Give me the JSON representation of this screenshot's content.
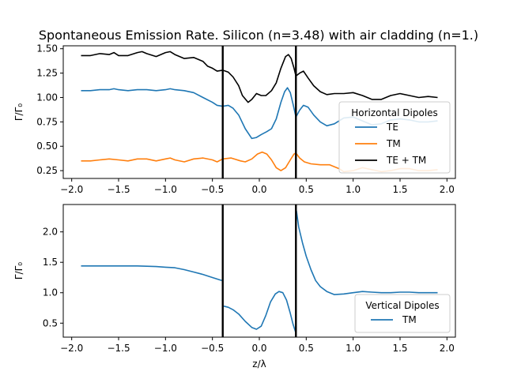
{
  "figure": {
    "title": "Spontaneous Emission Rate. Silicon (n=3.48) with air cladding (n=1.)"
  },
  "chart_data": [
    {
      "type": "line",
      "title": "Spontaneous Emission Rate. Silicon (n=3.48) with air cladding (n=1.)",
      "xlabel": "",
      "ylabel": "Γ/Γ₀",
      "xlim": [
        -2.09,
        2.09
      ],
      "ylim": [
        0.17,
        1.53
      ],
      "xticks": [
        -2.0,
        -1.5,
        -1.0,
        -0.5,
        0.0,
        0.5,
        1.0,
        1.5,
        2.0
      ],
      "xtick_labels": [
        "−2.0",
        "−1.5",
        "−1.0",
        "−0.5",
        "0.0",
        "0.5",
        "1.0",
        "1.5",
        "2.0"
      ],
      "yticks": [
        0.25,
        0.5,
        0.75,
        1.0,
        1.25,
        1.5
      ],
      "ytick_labels": [
        "0.25",
        "0.50",
        "0.75",
        "1.00",
        "1.25",
        "1.50"
      ],
      "vlines": [
        -0.39,
        0.39
      ],
      "grid": false,
      "legend": {
        "title": "Horizontal Dipoles",
        "position": "right"
      },
      "series": [
        {
          "name": "TE",
          "color": "#1f77b4",
          "points": [
            [
              -1.9,
              1.07
            ],
            [
              -1.8,
              1.07
            ],
            [
              -1.7,
              1.08
            ],
            [
              -1.6,
              1.08
            ],
            [
              -1.55,
              1.09
            ],
            [
              -1.5,
              1.08
            ],
            [
              -1.4,
              1.07
            ],
            [
              -1.3,
              1.08
            ],
            [
              -1.2,
              1.08
            ],
            [
              -1.1,
              1.07
            ],
            [
              -1.0,
              1.08
            ],
            [
              -0.95,
              1.09
            ],
            [
              -0.9,
              1.08
            ],
            [
              -0.8,
              1.07
            ],
            [
              -0.7,
              1.05
            ],
            [
              -0.6,
              1.0
            ],
            [
              -0.5,
              0.95
            ],
            [
              -0.45,
              0.92
            ],
            [
              -0.39,
              0.91
            ],
            [
              -0.33,
              0.92
            ],
            [
              -0.28,
              0.89
            ],
            [
              -0.22,
              0.82
            ],
            [
              -0.15,
              0.68
            ],
            [
              -0.08,
              0.58
            ],
            [
              -0.03,
              0.59
            ],
            [
              0.02,
              0.62
            ],
            [
              0.08,
              0.65
            ],
            [
              0.13,
              0.68
            ],
            [
              0.18,
              0.78
            ],
            [
              0.23,
              0.95
            ],
            [
              0.27,
              1.06
            ],
            [
              0.3,
              1.1
            ],
            [
              0.33,
              1.05
            ],
            [
              0.36,
              0.93
            ],
            [
              0.39,
              0.8
            ],
            [
              0.43,
              0.87
            ],
            [
              0.47,
              0.92
            ],
            [
              0.52,
              0.9
            ],
            [
              0.58,
              0.82
            ],
            [
              0.65,
              0.75
            ],
            [
              0.72,
              0.71
            ],
            [
              0.8,
              0.73
            ],
            [
              0.9,
              0.79
            ],
            [
              1.0,
              0.8
            ],
            [
              1.1,
              0.76
            ],
            [
              1.2,
              0.72
            ],
            [
              1.3,
              0.73
            ],
            [
              1.4,
              0.77
            ],
            [
              1.5,
              0.78
            ],
            [
              1.6,
              0.77
            ],
            [
              1.7,
              0.75
            ],
            [
              1.8,
              0.75
            ],
            [
              1.9,
              0.76
            ]
          ]
        },
        {
          "name": "TM",
          "color": "#ff7f0e",
          "points": [
            [
              -1.9,
              0.35
            ],
            [
              -1.8,
              0.35
            ],
            [
              -1.7,
              0.36
            ],
            [
              -1.6,
              0.37
            ],
            [
              -1.5,
              0.36
            ],
            [
              -1.4,
              0.35
            ],
            [
              -1.3,
              0.37
            ],
            [
              -1.2,
              0.37
            ],
            [
              -1.1,
              0.35
            ],
            [
              -1.0,
              0.37
            ],
            [
              -0.95,
              0.38
            ],
            [
              -0.9,
              0.36
            ],
            [
              -0.8,
              0.34
            ],
            [
              -0.7,
              0.37
            ],
            [
              -0.6,
              0.38
            ],
            [
              -0.5,
              0.36
            ],
            [
              -0.45,
              0.34
            ],
            [
              -0.39,
              0.37
            ],
            [
              -0.3,
              0.38
            ],
            [
              -0.2,
              0.35
            ],
            [
              -0.15,
              0.34
            ],
            [
              -0.08,
              0.37
            ],
            [
              -0.02,
              0.42
            ],
            [
              0.03,
              0.44
            ],
            [
              0.08,
              0.42
            ],
            [
              0.13,
              0.36
            ],
            [
              0.18,
              0.28
            ],
            [
              0.23,
              0.25
            ],
            [
              0.28,
              0.28
            ],
            [
              0.33,
              0.36
            ],
            [
              0.37,
              0.42
            ],
            [
              0.39,
              0.43
            ],
            [
              0.43,
              0.38
            ],
            [
              0.48,
              0.34
            ],
            [
              0.55,
              0.32
            ],
            [
              0.65,
              0.31
            ],
            [
              0.75,
              0.31
            ],
            [
              0.85,
              0.27
            ],
            [
              0.9,
              0.24
            ],
            [
              1.0,
              0.25
            ],
            [
              1.1,
              0.28
            ],
            [
              1.2,
              0.26
            ],
            [
              1.3,
              0.24
            ],
            [
              1.4,
              0.25
            ],
            [
              1.5,
              0.27
            ],
            [
              1.6,
              0.27
            ],
            [
              1.7,
              0.25
            ],
            [
              1.8,
              0.25
            ],
            [
              1.9,
              0.26
            ]
          ]
        },
        {
          "name": "TE + TM",
          "color": "#000000",
          "points": [
            [
              -1.9,
              1.43
            ],
            [
              -1.8,
              1.43
            ],
            [
              -1.7,
              1.45
            ],
            [
              -1.6,
              1.44
            ],
            [
              -1.55,
              1.46
            ],
            [
              -1.5,
              1.43
            ],
            [
              -1.4,
              1.43
            ],
            [
              -1.3,
              1.46
            ],
            [
              -1.25,
              1.47
            ],
            [
              -1.2,
              1.45
            ],
            [
              -1.1,
              1.42
            ],
            [
              -1.0,
              1.46
            ],
            [
              -0.95,
              1.47
            ],
            [
              -0.9,
              1.44
            ],
            [
              -0.8,
              1.4
            ],
            [
              -0.7,
              1.41
            ],
            [
              -0.6,
              1.37
            ],
            [
              -0.55,
              1.32
            ],
            [
              -0.5,
              1.3
            ],
            [
              -0.45,
              1.27
            ],
            [
              -0.39,
              1.28
            ],
            [
              -0.33,
              1.26
            ],
            [
              -0.28,
              1.21
            ],
            [
              -0.22,
              1.12
            ],
            [
              -0.18,
              1.02
            ],
            [
              -0.12,
              0.95
            ],
            [
              -0.08,
              0.98
            ],
            [
              -0.03,
              1.04
            ],
            [
              0.02,
              1.02
            ],
            [
              0.07,
              1.02
            ],
            [
              0.13,
              1.07
            ],
            [
              0.18,
              1.15
            ],
            [
              0.23,
              1.3
            ],
            [
              0.28,
              1.42
            ],
            [
              0.31,
              1.44
            ],
            [
              0.34,
              1.4
            ],
            [
              0.37,
              1.3
            ],
            [
              0.39,
              1.22
            ],
            [
              0.43,
              1.25
            ],
            [
              0.47,
              1.27
            ],
            [
              0.52,
              1.2
            ],
            [
              0.58,
              1.12
            ],
            [
              0.65,
              1.06
            ],
            [
              0.72,
              1.03
            ],
            [
              0.8,
              1.04
            ],
            [
              0.9,
              1.04
            ],
            [
              1.0,
              1.05
            ],
            [
              1.1,
              1.02
            ],
            [
              1.2,
              0.98
            ],
            [
              1.3,
              0.98
            ],
            [
              1.4,
              1.02
            ],
            [
              1.5,
              1.04
            ],
            [
              1.6,
              1.02
            ],
            [
              1.7,
              1.0
            ],
            [
              1.8,
              1.01
            ],
            [
              1.9,
              1.0
            ]
          ]
        }
      ]
    },
    {
      "type": "line",
      "title": "",
      "xlabel": "z/λ",
      "ylabel": "Γ/Γ₀",
      "xlim": [
        -2.09,
        2.09
      ],
      "ylim": [
        0.27,
        2.45
      ],
      "xticks": [
        -2.0,
        -1.5,
        -1.0,
        -0.5,
        0.0,
        0.5,
        1.0,
        1.5,
        2.0
      ],
      "xtick_labels": [
        "−2.0",
        "−1.5",
        "−1.0",
        "−0.5",
        "0.0",
        "0.5",
        "1.0",
        "1.5",
        "2.0"
      ],
      "yticks": [
        0.5,
        1.0,
        1.5,
        2.0
      ],
      "ytick_labels": [
        "0.5",
        "1.0",
        "1.5",
        "2.0"
      ],
      "vlines": [
        -0.39,
        0.39
      ],
      "grid": false,
      "legend": {
        "title": "Vertical Dipoles",
        "position": "lower right"
      },
      "series": [
        {
          "name": "TM",
          "color": "#1f77b4",
          "segments": [
            [
              [
                -1.9,
                1.44
              ],
              [
                -1.7,
                1.44
              ],
              [
                -1.5,
                1.44
              ],
              [
                -1.3,
                1.44
              ],
              [
                -1.1,
                1.43
              ],
              [
                -1.0,
                1.42
              ],
              [
                -0.9,
                1.41
              ],
              [
                -0.8,
                1.38
              ],
              [
                -0.7,
                1.34
              ],
              [
                -0.6,
                1.3
              ],
              [
                -0.5,
                1.25
              ],
              [
                -0.4,
                1.2
              ]
            ],
            [
              [
                -0.38,
                0.78
              ],
              [
                -0.33,
                0.76
              ],
              [
                -0.28,
                0.72
              ],
              [
                -0.22,
                0.65
              ],
              [
                -0.15,
                0.53
              ],
              [
                -0.08,
                0.43
              ],
              [
                -0.03,
                0.4
              ],
              [
                0.02,
                0.45
              ],
              [
                0.07,
                0.63
              ],
              [
                0.12,
                0.85
              ],
              [
                0.17,
                0.98
              ],
              [
                0.21,
                1.02
              ],
              [
                0.25,
                1.0
              ],
              [
                0.29,
                0.88
              ],
              [
                0.33,
                0.66
              ],
              [
                0.36,
                0.48
              ],
              [
                0.385,
                0.36
              ]
            ],
            [
              [
                0.395,
                2.35
              ],
              [
                0.42,
                2.08
              ],
              [
                0.46,
                1.82
              ],
              [
                0.5,
                1.6
              ],
              [
                0.55,
                1.38
              ],
              [
                0.6,
                1.2
              ],
              [
                0.65,
                1.1
              ],
              [
                0.72,
                1.02
              ],
              [
                0.8,
                0.97
              ],
              [
                0.9,
                0.98
              ],
              [
                1.0,
                1.0
              ],
              [
                1.1,
                1.02
              ],
              [
                1.2,
                1.01
              ],
              [
                1.3,
                1.0
              ],
              [
                1.4,
                1.0
              ],
              [
                1.5,
                1.01
              ],
              [
                1.6,
                1.01
              ],
              [
                1.7,
                1.0
              ],
              [
                1.8,
                1.0
              ],
              [
                1.9,
                1.0
              ]
            ]
          ]
        }
      ]
    }
  ]
}
